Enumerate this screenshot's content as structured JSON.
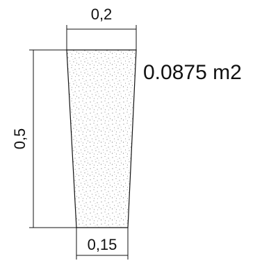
{
  "diagram": {
    "top_width_label": "0,2",
    "height_label": "0,5",
    "bottom_width_label": "0,15",
    "area_label": "0.0875 m2"
  },
  "colors": {
    "line": "#111111",
    "fill_texture": "#3a3a3a",
    "background": "#ffffff"
  }
}
